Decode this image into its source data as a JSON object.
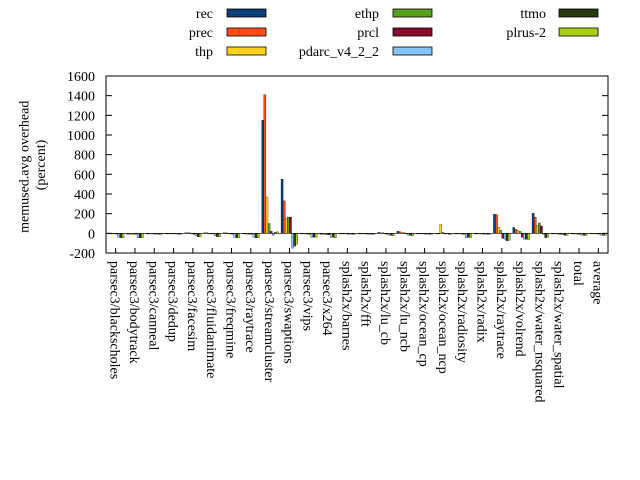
{
  "chart_data": {
    "type": "bar",
    "ylabel": "memused.avg overhead\n(percent)",
    "xlabel": "",
    "ylim": [
      -200,
      1600
    ],
    "yticks": [
      -200,
      0,
      200,
      400,
      600,
      800,
      1000,
      1200,
      1400,
      1600
    ],
    "grid": false,
    "legend_position": "top",
    "categories": [
      "parsec3/blackscholes",
      "parsec3/bodytrack",
      "parsec3/canneal",
      "parsec3/dedup",
      "parsec3/facesim",
      "parsec3/fluidanimate",
      "parsec3/freqmine",
      "parsec3/raytrace",
      "parsec3/streamcluster",
      "parsec3/swaptions",
      "parsec3/vips",
      "parsec3/x264",
      "splash2x/barnes",
      "splash2x/fft",
      "splash2x/lu_cb",
      "splash2x/lu_ncb",
      "splash2x/ocean_cp",
      "splash2x/ocean_ncp",
      "splash2x/radiosity",
      "splash2x/radix",
      "splash2x/raytrace",
      "splash2x/volrend",
      "splash2x/water_nsquared",
      "splash2x/water_spatial",
      "total",
      "average"
    ],
    "series": [
      {
        "name": "rec",
        "color": "#0b3e7a",
        "values": [
          -5,
          -8,
          -5,
          -3,
          5,
          5,
          5,
          -5,
          1150,
          550,
          -5,
          -10,
          -5,
          -5,
          10,
          20,
          -5,
          -5,
          -5,
          -5,
          195,
          60,
          205,
          -5,
          -5,
          -5
        ]
      },
      {
        "name": "prec",
        "color": "#ff4a1a",
        "values": [
          -5,
          -8,
          -5,
          -3,
          5,
          5,
          5,
          -5,
          1410,
          330,
          -5,
          -10,
          -5,
          -5,
          5,
          15,
          -5,
          -5,
          -5,
          -5,
          190,
          40,
          165,
          -5,
          -5,
          -5
        ]
      },
      {
        "name": "thp",
        "color": "#ffd11a",
        "values": [
          -5,
          -10,
          -5,
          -3,
          5,
          0,
          -5,
          -10,
          370,
          150,
          -5,
          -10,
          -5,
          -5,
          5,
          10,
          -5,
          90,
          -5,
          -5,
          60,
          30,
          80,
          -5,
          -5,
          -5
        ]
      },
      {
        "name": "ethp",
        "color": "#57a11a",
        "values": [
          -5,
          -10,
          -5,
          -3,
          0,
          0,
          -5,
          -10,
          100,
          165,
          -10,
          -15,
          -5,
          -5,
          0,
          5,
          -5,
          10,
          -10,
          -5,
          30,
          20,
          105,
          -10,
          -10,
          -5
        ]
      },
      {
        "name": "prcl",
        "color": "#8a0b2e",
        "values": [
          -8,
          -10,
          -8,
          -5,
          -10,
          -5,
          -10,
          -10,
          20,
          165,
          -10,
          -15,
          -8,
          -8,
          -10,
          -5,
          -8,
          -5,
          -10,
          -8,
          -50,
          -40,
          75,
          -10,
          -10,
          -8
        ]
      },
      {
        "name": "pdarc_v4_2_2",
        "color": "#86c4f5",
        "values": [
          -40,
          -45,
          -8,
          -5,
          -25,
          -25,
          -40,
          -40,
          -20,
          -150,
          -40,
          -40,
          -8,
          -8,
          -20,
          -20,
          -8,
          -5,
          -45,
          -8,
          -60,
          -60,
          -10,
          -15,
          -20,
          -20
        ]
      },
      {
        "name": "ttmo",
        "color": "#2a3a10",
        "values": [
          -45,
          -45,
          -10,
          -10,
          -35,
          -35,
          -45,
          -45,
          10,
          -130,
          -40,
          -40,
          -10,
          -10,
          -20,
          -20,
          -10,
          -10,
          -40,
          -10,
          -75,
          -60,
          -45,
          -20,
          -20,
          -20
        ]
      },
      {
        "name": "plrus-2",
        "color": "#a8d11a",
        "values": [
          -45,
          -45,
          -10,
          -10,
          -35,
          -35,
          -45,
          -45,
          15,
          -110,
          -40,
          -45,
          -10,
          -10,
          -25,
          -25,
          -10,
          -10,
          -45,
          -10,
          -70,
          -65,
          -40,
          -20,
          -20,
          -20
        ]
      }
    ]
  }
}
